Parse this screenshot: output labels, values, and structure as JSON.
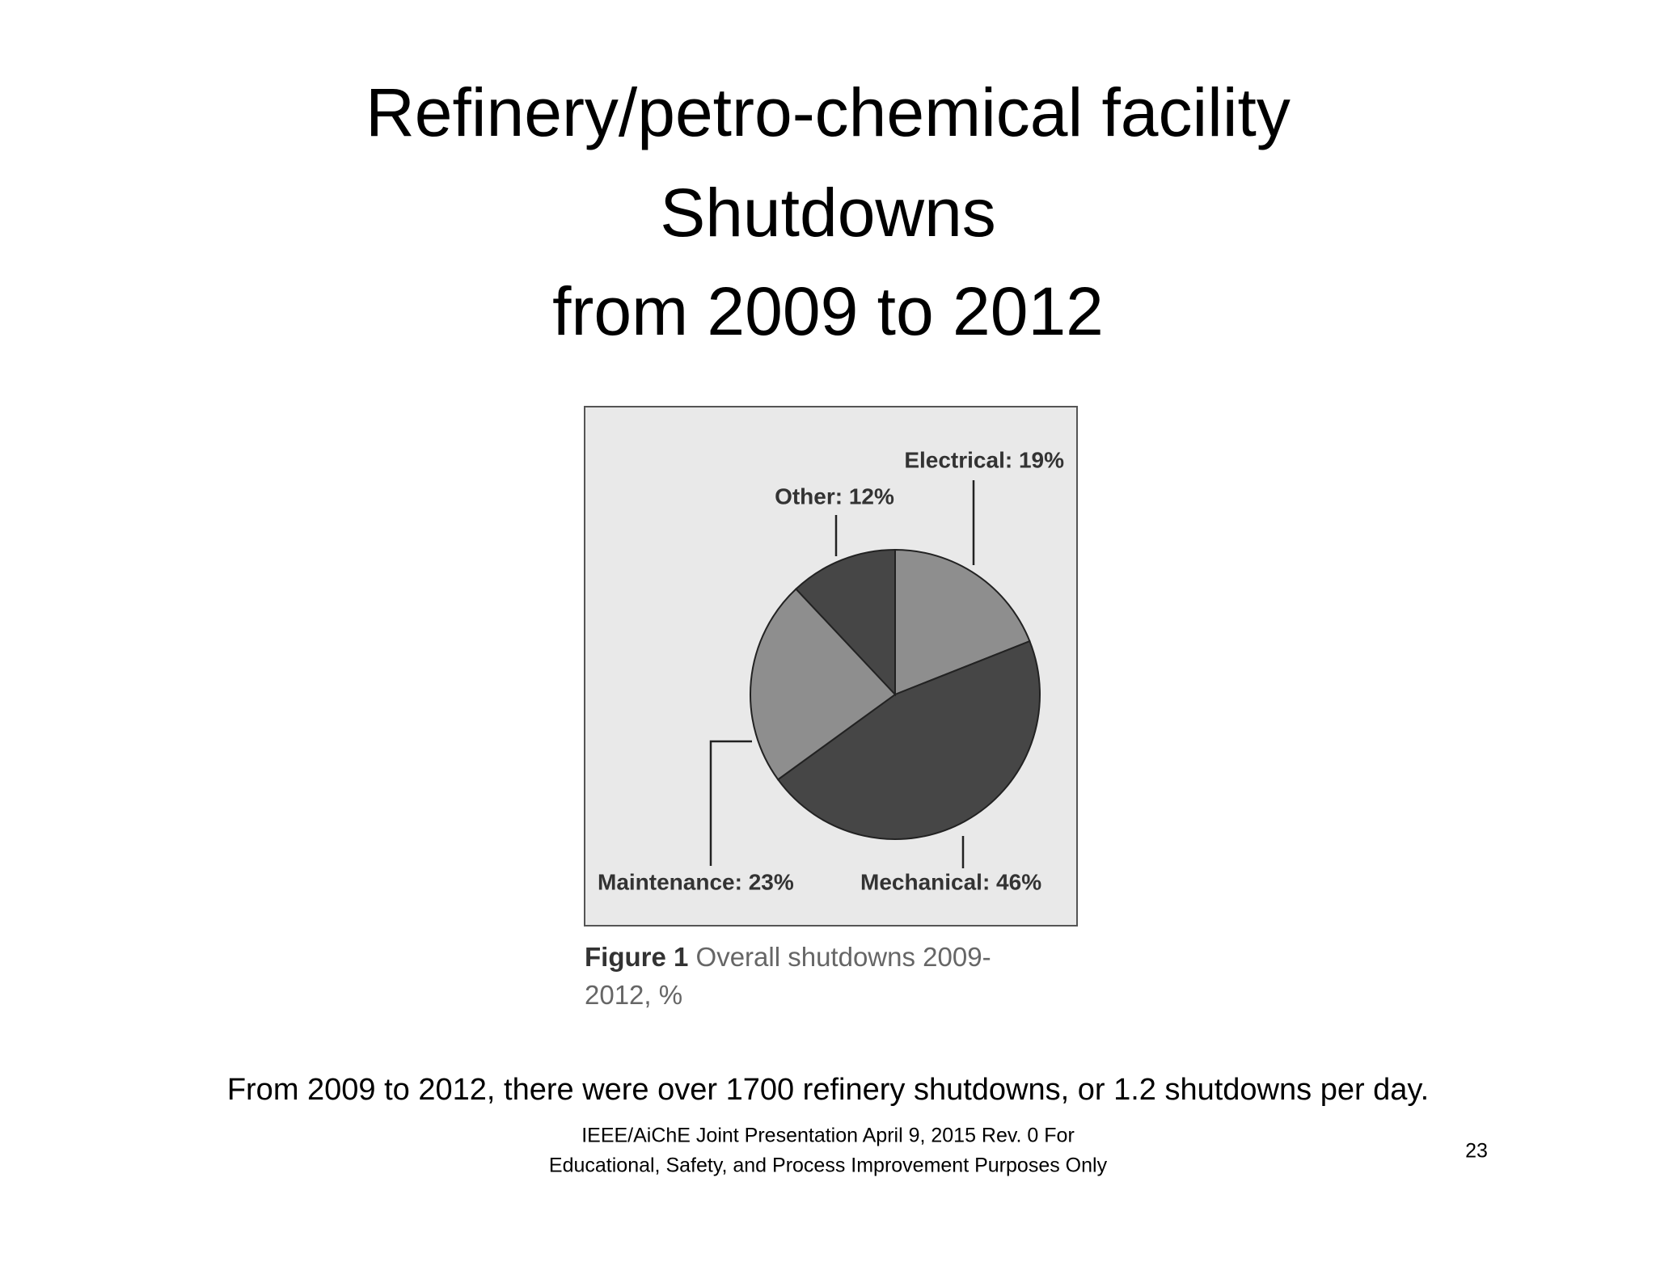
{
  "slide": {
    "title_lines": [
      "Refinery/petro-chemical facility",
      "Shutdowns",
      "from 2009 to 2012"
    ],
    "summary": "From 2009 to 2012, there were over 1700 refinery shutdowns, or 1.2 shutdowns per day.",
    "footer_lines": [
      "IEEE/AiChE Joint Presentation April 9, 2015 Rev. 0 For",
      "Educational, Safety, and Process Improvement Purposes Only"
    ],
    "page_number": "23"
  },
  "chart_data": {
    "type": "pie",
    "categories": [
      "Electrical",
      "Mechanical",
      "Maintenance",
      "Other"
    ],
    "values": [
      19,
      46,
      23,
      12
    ],
    "value_labels": [
      "Electrical: 19%",
      "Mechanical: 46%",
      "Maintenance: 23%",
      "Other: 12%"
    ],
    "colors": [
      "#8e8e8e",
      "#464646",
      "#8e8e8e",
      "#464646"
    ],
    "caption_label": "Figure 1",
    "caption": "Overall shutdowns 2009-2012, %"
  }
}
